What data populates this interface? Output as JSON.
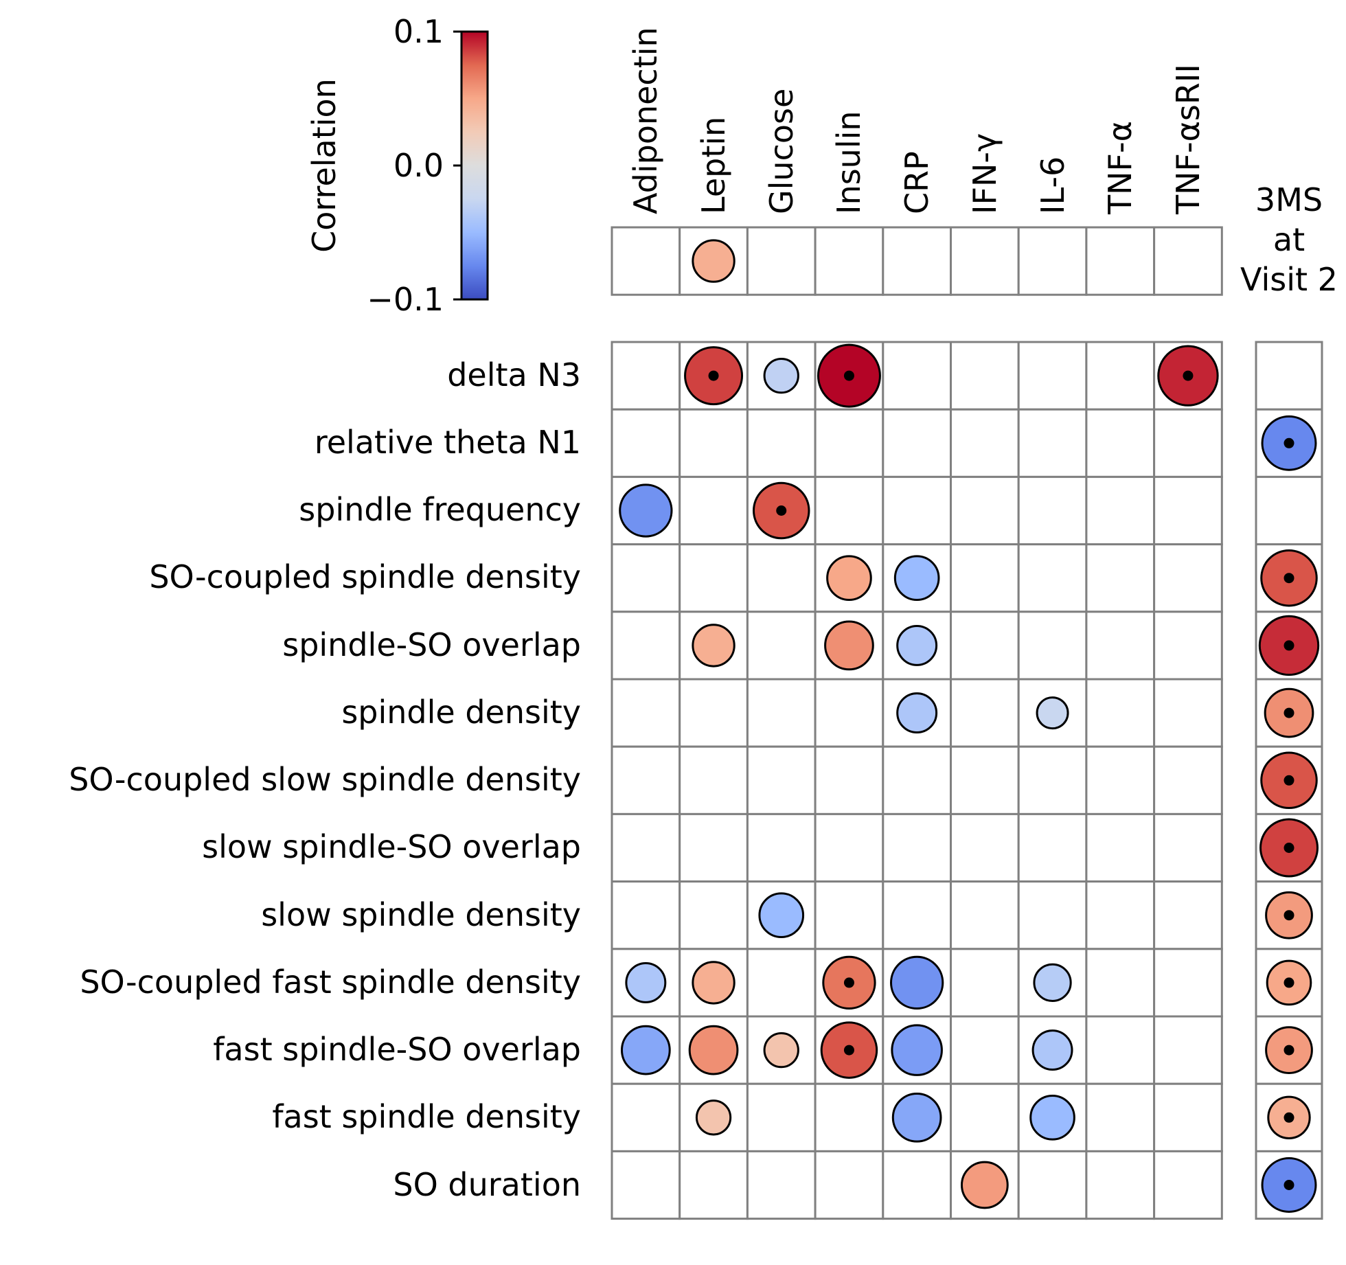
{
  "chart_data": {
    "type": "heatmap",
    "marker": "circle",
    "columns": [
      "Adiponectin",
      "Leptin",
      "Glucose",
      "Insulin",
      "CRP",
      "IFN-γ",
      "IL-6",
      "TNF-α",
      "TNF-αsRII"
    ],
    "side_column_label": [
      "3MS",
      "at",
      "Visit 2"
    ],
    "rows": [
      "delta N3",
      "relative theta N1",
      "spindle frequency",
      "SO-coupled spindle density",
      "spindle-SO overlap",
      "spindle density",
      "SO-coupled slow spindle density",
      "slow spindle-SO overlap",
      "slow spindle density",
      "SO-coupled fast spindle density",
      "fast spindle-SO overlap",
      "fast spindle density",
      "SO duration"
    ],
    "top_row_values": [
      null,
      0.045,
      null,
      null,
      null,
      null,
      null,
      null,
      null
    ],
    "top_row_significant": [
      false,
      false,
      false,
      false,
      false,
      false,
      false,
      false,
      false
    ],
    "main_values": [
      [
        null,
        0.085,
        -0.03,
        0.1,
        null,
        null,
        null,
        null,
        0.092
      ],
      [
        null,
        null,
        null,
        null,
        null,
        null,
        null,
        null,
        null
      ],
      [
        -0.07,
        null,
        0.08,
        null,
        null,
        null,
        null,
        null,
        null
      ],
      [
        null,
        null,
        null,
        0.05,
        -0.05,
        null,
        null,
        null,
        null
      ],
      [
        null,
        0.045,
        null,
        0.06,
        -0.04,
        null,
        null,
        null,
        null
      ],
      [
        null,
        null,
        null,
        null,
        -0.04,
        null,
        -0.025,
        null,
        null
      ],
      [
        null,
        null,
        null,
        null,
        null,
        null,
        null,
        null,
        null
      ],
      [
        null,
        null,
        null,
        null,
        null,
        null,
        null,
        null,
        null
      ],
      [
        null,
        null,
        null,
        null,
        null,
        null,
        null,
        null,
        null
      ],
      [
        null,
        null,
        null,
        null,
        null,
        null,
        null,
        null,
        null
      ],
      [
        null,
        null,
        null,
        null,
        null,
        null,
        null,
        null,
        null
      ],
      [
        null,
        null,
        null,
        null,
        null,
        null,
        null,
        null,
        null
      ],
      [
        null,
        null,
        null,
        null,
        null,
        null,
        null,
        null,
        null
      ]
    ],
    "main_significant": [
      [
        false,
        true,
        false,
        true,
        false,
        false,
        false,
        false,
        true
      ],
      [
        false,
        false,
        false,
        false,
        false,
        false,
        false,
        false,
        false
      ],
      [
        false,
        false,
        true,
        false,
        false,
        false,
        false,
        false,
        false
      ],
      [
        false,
        false,
        false,
        false,
        false,
        false,
        false,
        false,
        false
      ],
      [
        false,
        false,
        false,
        false,
        false,
        false,
        false,
        false,
        false
      ],
      [
        false,
        false,
        false,
        false,
        false,
        false,
        false,
        false,
        false
      ],
      [
        false,
        false,
        false,
        false,
        false,
        false,
        false,
        false,
        false
      ],
      [
        false,
        false,
        false,
        false,
        false,
        false,
        false,
        false,
        false
      ],
      [
        false,
        false,
        false,
        false,
        false,
        false,
        false,
        false,
        false
      ],
      [
        false,
        false,
        false,
        false,
        false,
        false,
        false,
        false,
        false
      ],
      [
        false,
        false,
        false,
        false,
        false,
        false,
        false,
        false,
        false
      ],
      [
        false,
        false,
        false,
        false,
        false,
        false,
        false,
        false,
        false
      ],
      [
        false,
        false,
        false,
        false,
        false,
        false,
        false,
        false,
        false
      ]
    ],
    "side_values": [
      null,
      -0.075,
      null,
      0.08,
      0.09,
      0.06,
      0.08,
      0.085,
      0.055,
      0.05,
      0.055,
      0.045,
      -0.075
    ],
    "side_significant": [
      false,
      true,
      false,
      true,
      true,
      true,
      true,
      true,
      true,
      true,
      true,
      true,
      true
    ],
    "colorbar": {
      "label": "Correlation",
      "range": [
        -0.1,
        0.1
      ],
      "ticks": [
        0.1,
        0.0,
        -0.1
      ],
      "tick_labels": [
        "0.1",
        "0.0",
        "−0.1"
      ],
      "colormap": "coolwarm",
      "colors": [
        "#3b4cc0",
        "#6788ee",
        "#9abbff",
        "#c9d7f0",
        "#dddddd",
        "#f2cbb7",
        "#f7a889",
        "#e26952",
        "#b40426"
      ]
    },
    "cell_border_color": "#808080"
  }
}
